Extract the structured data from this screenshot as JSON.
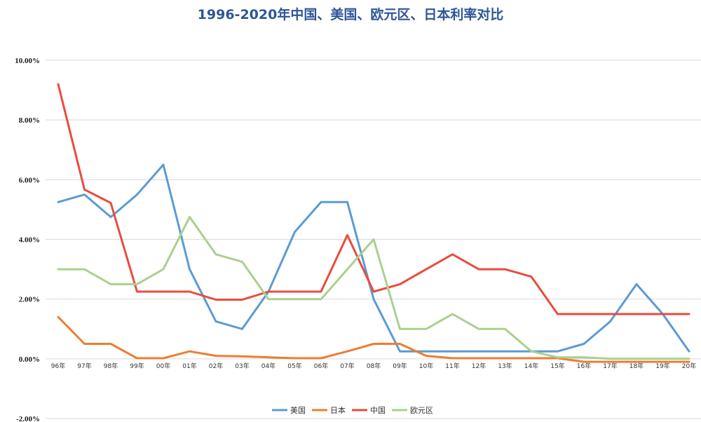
{
  "chart_data": {
    "type": "line",
    "title": "1996-2020年中国、美国、欧元区、日本利率对比",
    "title_color": "#2F5597",
    "xlabel": "",
    "ylabel": "",
    "ylim": [
      -2,
      10
    ],
    "y_ticks": [
      -2,
      0,
      2,
      4,
      6,
      8,
      10
    ],
    "y_tick_labels": [
      "-2.00%",
      "0.00%",
      "2.00%",
      "4.00%",
      "6.00%",
      "8.00%",
      "10.00%"
    ],
    "grid": true,
    "legend_position": "bottom",
    "categories": [
      "96年",
      "97年",
      "98年",
      "99年",
      "00年",
      "01年",
      "02年",
      "03年",
      "04年",
      "05年",
      "06年",
      "07年",
      "08年",
      "09年",
      "10年",
      "11年",
      "12年",
      "13年",
      "14年",
      "15年",
      "16年",
      "17年",
      "18年",
      "19年",
      "20年"
    ],
    "series": [
      {
        "name": "美国",
        "color": "#5B9BD5",
        "values": [
          5.25,
          5.5,
          4.75,
          5.5,
          6.5,
          3.0,
          1.25,
          1.0,
          2.25,
          4.25,
          5.25,
          5.25,
          2.0,
          0.25,
          0.25,
          0.25,
          0.25,
          0.25,
          0.25,
          0.25,
          0.5,
          1.25,
          2.5,
          1.5,
          0.25
        ]
      },
      {
        "name": "日本",
        "color": "#ED7D31",
        "values": [
          1.4,
          0.5,
          0.5,
          0.02,
          0.02,
          0.25,
          0.1,
          0.08,
          0.05,
          0.02,
          0.02,
          0.25,
          0.5,
          0.5,
          0.1,
          0.02,
          0.02,
          0.02,
          0.02,
          0.02,
          -0.1,
          -0.1,
          -0.1,
          -0.1,
          -0.1
        ]
      },
      {
        "name": "中国",
        "color": "#E84C3D",
        "values": [
          9.2,
          5.67,
          5.22,
          2.25,
          2.25,
          2.25,
          1.98,
          1.98,
          2.25,
          2.25,
          2.25,
          4.14,
          2.25,
          2.5,
          3.0,
          3.5,
          3.0,
          3.0,
          2.75,
          1.5,
          1.5,
          1.5,
          1.5,
          1.5,
          1.5
        ]
      },
      {
        "name": "欧元区",
        "color": "#A9D18E",
        "values": [
          3.0,
          3.0,
          2.5,
          2.5,
          3.0,
          4.75,
          3.5,
          3.25,
          2.0,
          2.0,
          2.0,
          3.0,
          4.0,
          1.0,
          1.0,
          1.5,
          1.0,
          1.0,
          0.25,
          0.05,
          0.05,
          0.0,
          0.0,
          0.0,
          0.0
        ]
      }
    ]
  }
}
